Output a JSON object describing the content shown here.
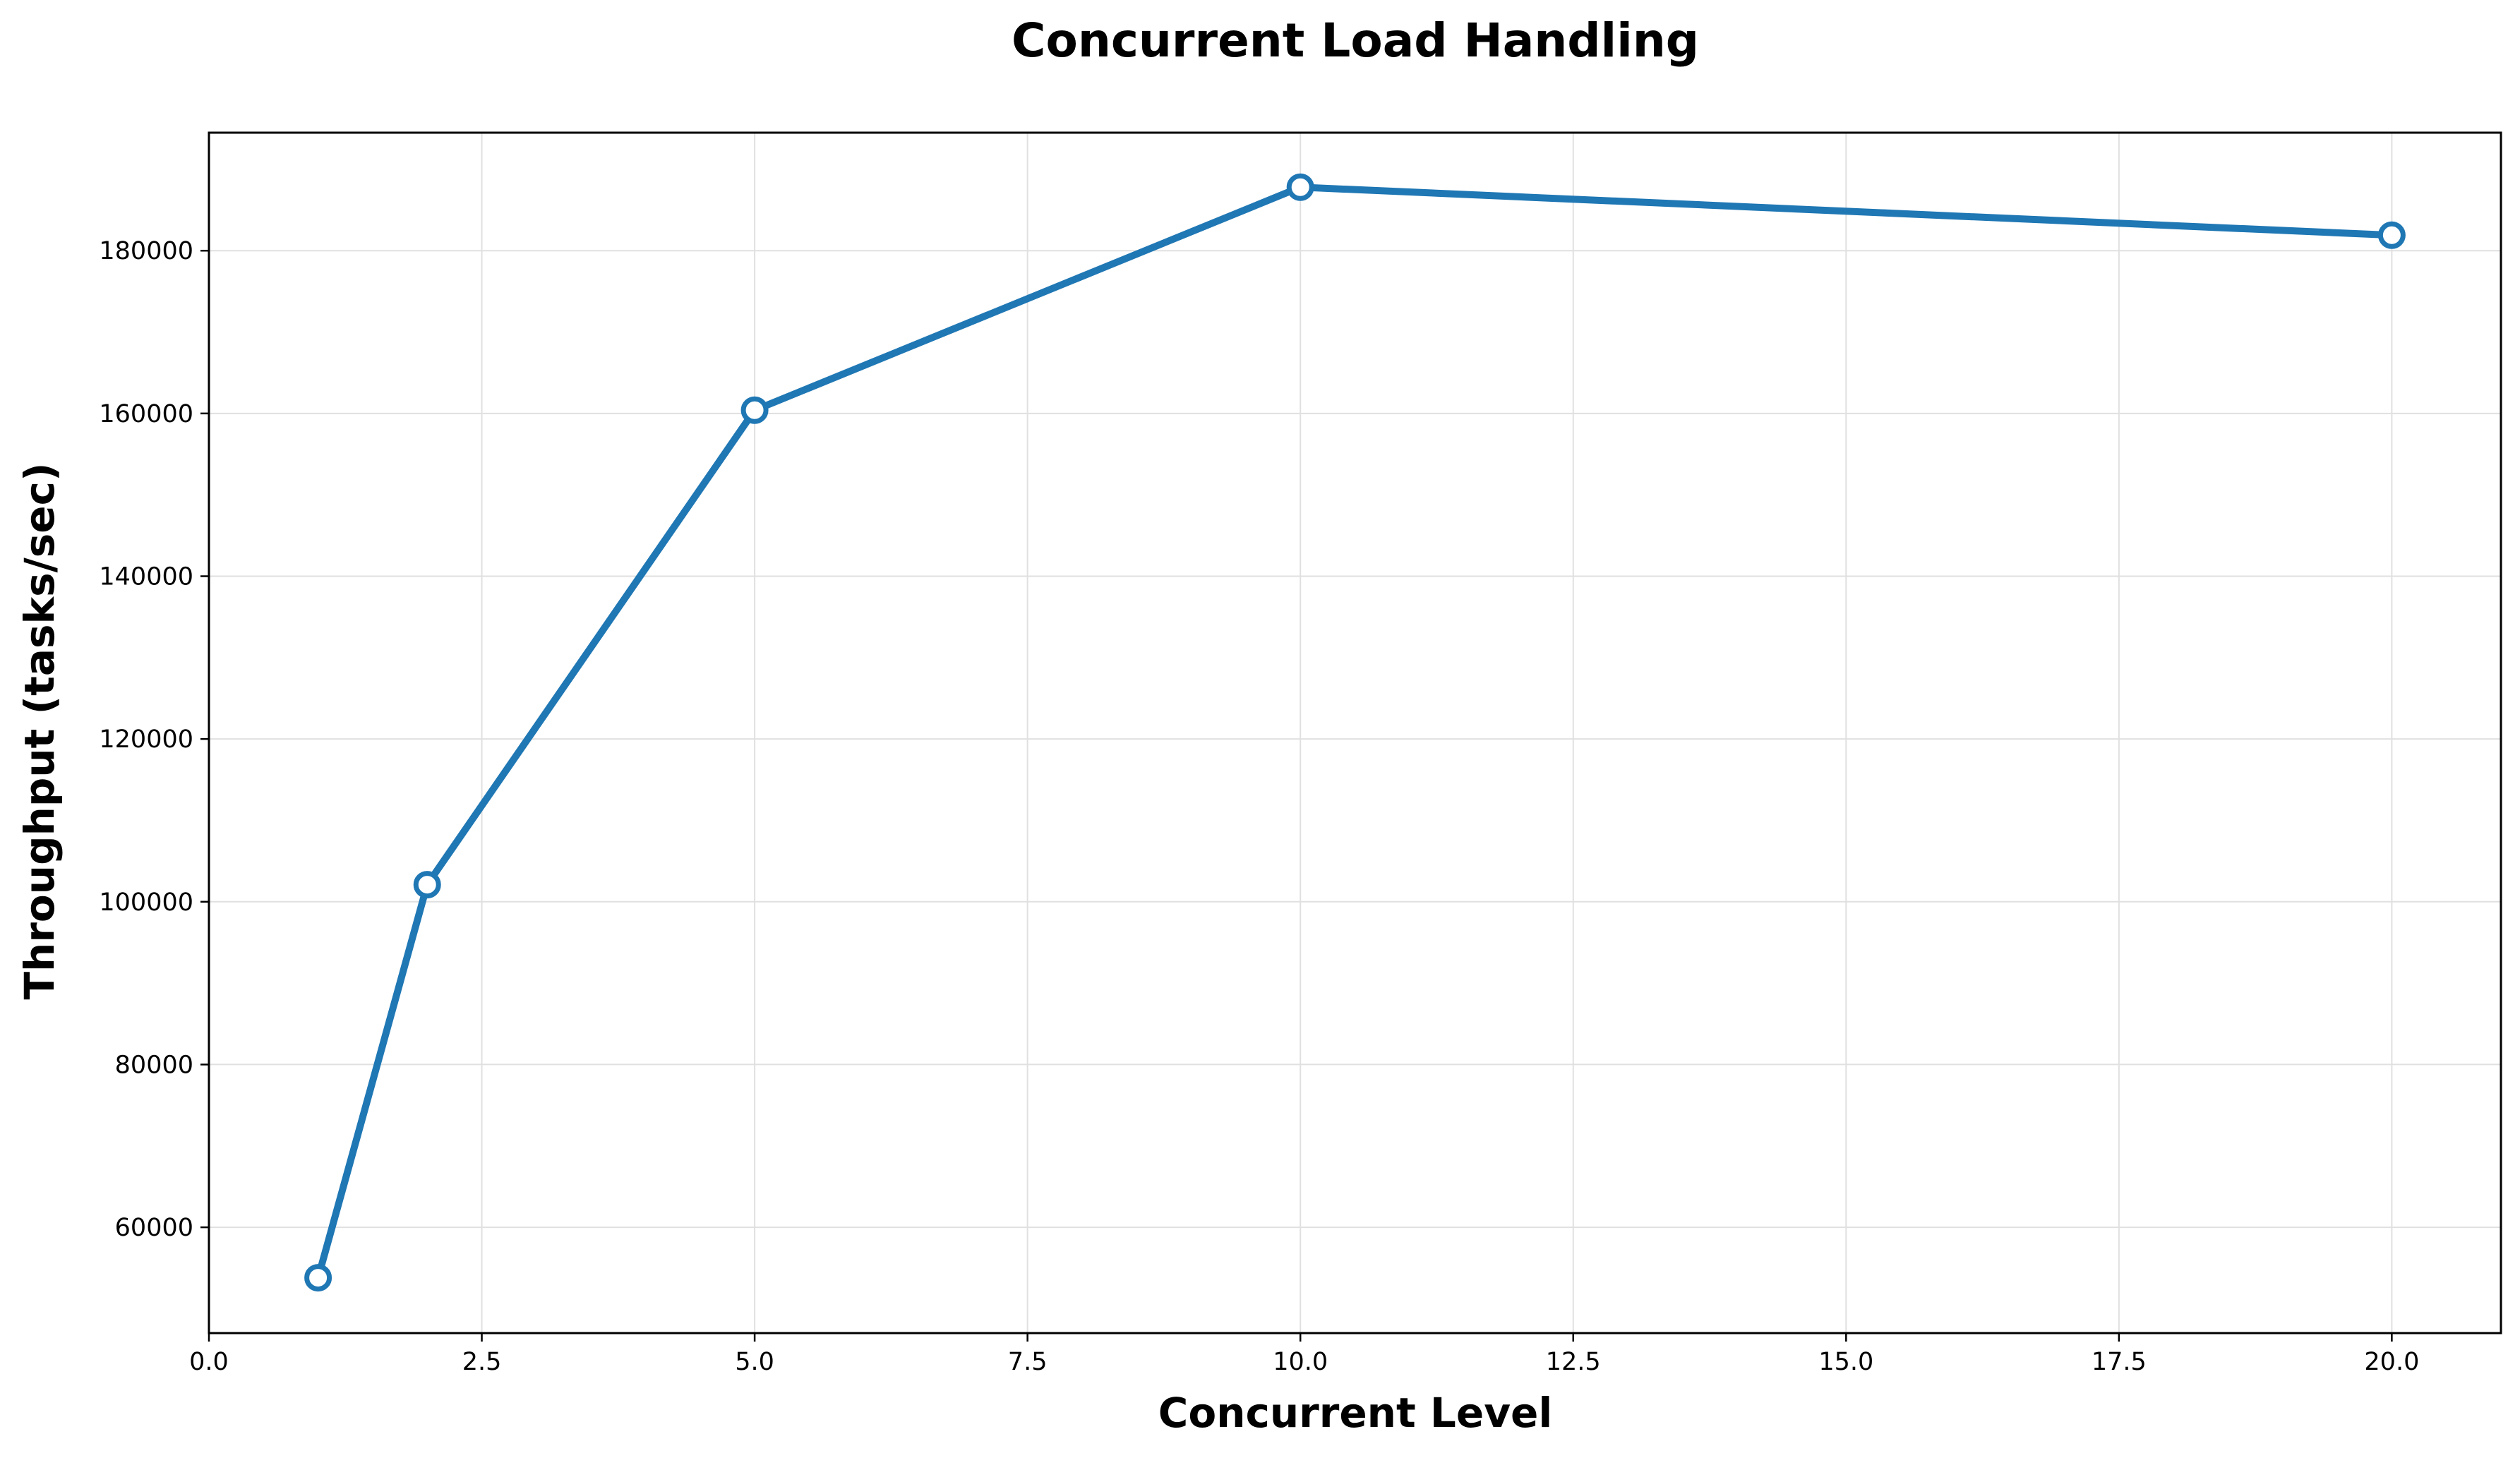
{
  "chart_data": {
    "type": "line",
    "title": "Concurrent Load Handling",
    "xlabel": "Concurrent Level",
    "ylabel": "Throughput (tasks/sec)",
    "xlim": [
      0,
      21
    ],
    "ylim": [
      47000,
      194500
    ],
    "xticks": [
      0,
      2.5,
      5,
      7.5,
      10,
      12.5,
      15,
      17.5,
      20
    ],
    "xtick_labels": [
      "0.0",
      "2.5",
      "5.0",
      "7.5",
      "10.0",
      "12.5",
      "15.0",
      "17.5",
      "20.0"
    ],
    "yticks": [
      60000,
      80000,
      100000,
      120000,
      140000,
      160000,
      180000
    ],
    "ytick_labels": [
      "60000",
      "80000",
      "100000",
      "120000",
      "140000",
      "160000",
      "180000"
    ],
    "grid": true,
    "series": [
      {
        "x": [
          1,
          2,
          5,
          10,
          20
        ],
        "y": [
          53800,
          102100,
          160400,
          187800,
          181900
        ],
        "color": "#1f77b4",
        "marker": "open-circle"
      }
    ]
  }
}
